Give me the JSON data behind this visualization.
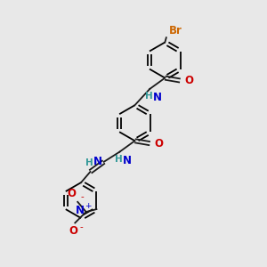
{
  "background_color": "#e8e8e8",
  "bond_color": "#1a1a1a",
  "atom_colors": {
    "Br": "#cc6600",
    "N": "#0000cc",
    "O": "#cc0000",
    "H": "#339999",
    "C": "#1a1a1a"
  },
  "font_size": 7.5,
  "fig_width": 3.0,
  "fig_height": 3.0,
  "dpi": 100
}
